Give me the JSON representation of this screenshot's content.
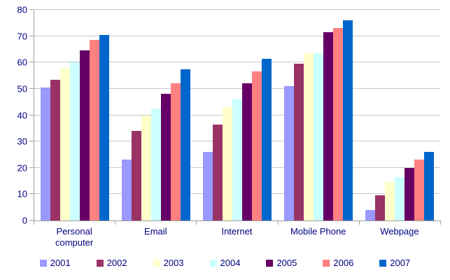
{
  "chart_data": {
    "type": "bar",
    "title": "",
    "xlabel": "",
    "ylabel": "",
    "categories": [
      "Personal computer",
      "Email",
      "Internet",
      "Mobile Phone",
      "Webpage"
    ],
    "series": [
      {
        "name": "2001",
        "color": "#9999FF",
        "values": [
          50.5,
          23,
          26,
          51,
          4
        ]
      },
      {
        "name": "2002",
        "color": "#993366",
        "values": [
          53.5,
          34,
          36.5,
          59.5,
          9.5
        ]
      },
      {
        "name": "2003",
        "color": "#FFFFCC",
        "values": [
          58,
          40,
          43,
          63.5,
          14.5
        ]
      },
      {
        "name": "2004",
        "color": "#CCFFFF",
        "values": [
          60,
          42.5,
          46,
          63.5,
          16.5
        ]
      },
      {
        "name": "2005",
        "color": "#660066",
        "values": [
          64.5,
          48,
          52,
          71.5,
          20
        ]
      },
      {
        "name": "2006",
        "color": "#FF8080",
        "values": [
          68.5,
          52,
          56.5,
          73,
          23
        ]
      },
      {
        "name": "2007",
        "color": "#0066CC",
        "values": [
          70.5,
          57.5,
          61.5,
          76,
          26
        ]
      }
    ],
    "ylim": [
      0,
      80
    ],
    "ytick_step": 10,
    "yticks": [
      0,
      10,
      20,
      30,
      40,
      50,
      60,
      70,
      80
    ],
    "grid": true,
    "legend_position": "bottom",
    "colors": {
      "background": "#FFFFFF",
      "text": "#000080",
      "gridline": "#C8C8C8",
      "axis": "#A0A0A0"
    }
  }
}
